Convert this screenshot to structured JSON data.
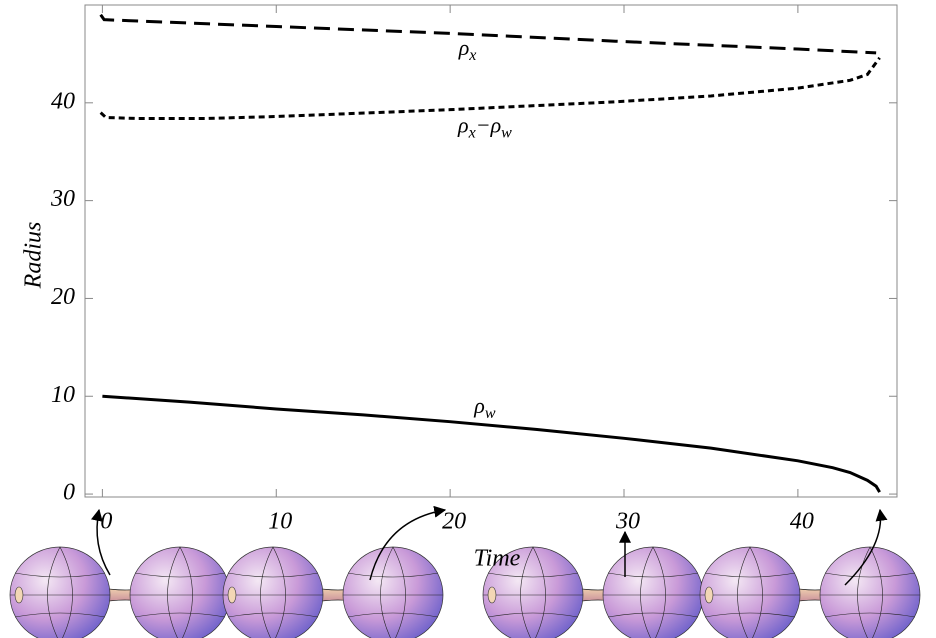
{
  "chart_data": {
    "type": "line",
    "xlabel": "Time",
    "ylabel": "Radius",
    "xlim": [
      -1,
      45.7
    ],
    "ylim": [
      -0.3,
      50
    ],
    "xticks": [
      0,
      10,
      20,
      30,
      40
    ],
    "yticks": [
      0,
      10,
      20,
      30,
      40
    ],
    "series": [
      {
        "name": "ρx",
        "color": "#000000",
        "dash": "long",
        "x": [
          -0.1,
          0.1,
          10,
          20,
          29.5,
          40,
          44.5
        ],
        "values": [
          49.0,
          48.5,
          47.8,
          47.1,
          46.3,
          45.5,
          45.1
        ]
      },
      {
        "name": "ρx−ρw",
        "color": "#000000",
        "dash": "short",
        "x": [
          -0.1,
          0.2,
          2,
          6,
          10,
          20,
          29.5,
          35,
          40,
          43,
          44,
          44.7
        ],
        "values": [
          39.0,
          38.5,
          38.4,
          38.4,
          38.6,
          39.3,
          40.1,
          40.7,
          41.5,
          42.3,
          42.9,
          44.6
        ]
      },
      {
        "name": "ρw",
        "color": "#000000",
        "dash": "solid",
        "x": [
          0,
          5,
          10,
          15,
          20,
          25,
          30,
          35,
          40,
          42,
          43,
          44,
          44.5,
          44.7
        ],
        "values": [
          10,
          9.4,
          8.7,
          8.1,
          7.4,
          6.6,
          5.7,
          4.7,
          3.4,
          2.7,
          2.2,
          1.4,
          0.8,
          0.2
        ]
      }
    ],
    "annotations": [
      {
        "x": 21,
        "y": 45.4,
        "parts": [
          {
            "t": "ρ"
          },
          {
            "sub": "x"
          }
        ]
      },
      {
        "x": 22,
        "y": 37.5,
        "parts": [
          {
            "t": "ρ"
          },
          {
            "sub": "x"
          },
          {
            "t": "−"
          },
          {
            "t": "ρ"
          },
          {
            "sub": "w"
          }
        ]
      },
      {
        "x": 22,
        "y": 8.8,
        "parts": [
          {
            "t": "ρ"
          },
          {
            "sub": "w"
          }
        ]
      }
    ]
  }
}
